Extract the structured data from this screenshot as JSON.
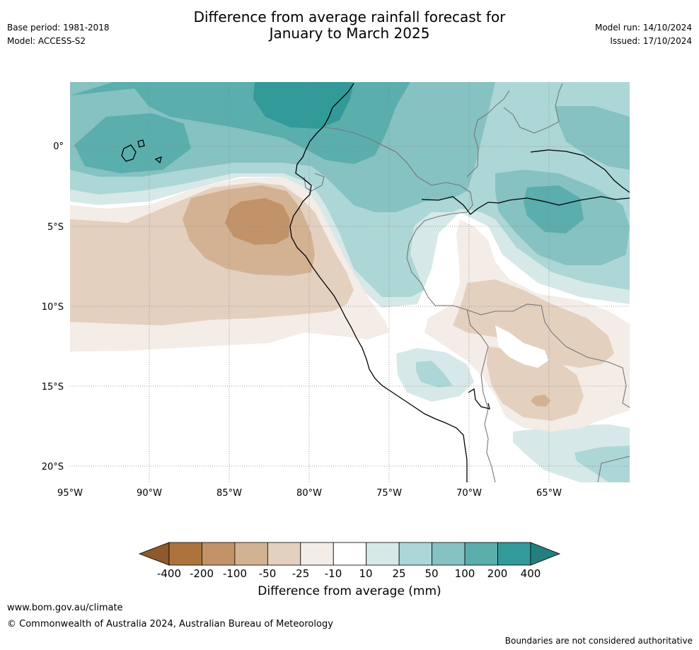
{
  "header": {
    "title_line1": "Difference from average rainfall forecast for",
    "title_line2": "January to March 2025",
    "base_period": "Base period: 1981-2018",
    "model": "Model: ACCESS-S2",
    "model_run": "Model run: 14/10/2024",
    "issued": "Issued: 17/10/2024"
  },
  "map": {
    "lat_labels": [
      "0°",
      "5°S",
      "10°S",
      "15°S",
      "20°S"
    ],
    "lon_labels": [
      "95°W",
      "90°W",
      "85°W",
      "80°W",
      "75°W",
      "70°W",
      "65°W"
    ]
  },
  "colorbar": {
    "tick_labels": [
      "-400",
      "-200",
      "-100",
      "-50",
      "-25",
      "-10",
      "10",
      "25",
      "50",
      "100",
      "200",
      "400"
    ],
    "colors": [
      "#8e5a2b",
      "#ae733c",
      "#c29368",
      "#d3b293",
      "#e4d0bf",
      "#f4ece6",
      "#ffffff",
      "#d6e9e8",
      "#acd7d6",
      "#85c2c1",
      "#5aaeac",
      "#329a99",
      "#237f7e"
    ],
    "caption": "Difference from average (mm)"
  },
  "footer": {
    "url": "www.bom.gov.au/climate",
    "copyright": "© Commonwealth of Australia 2024, Australian Bureau of Meteorology",
    "note": "Boundaries are not considered authoritative"
  }
}
